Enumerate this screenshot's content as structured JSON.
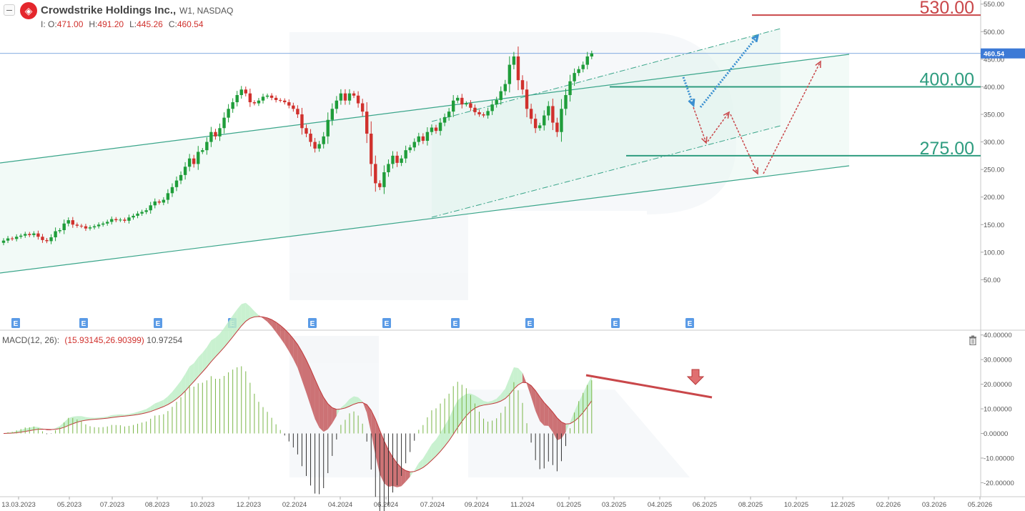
{
  "header": {
    "logo_icon": "crowdstrike-falcon-icon",
    "symbol_name": "Crowdstrike Holdings Inc.,",
    "timeframe_exchange": "W1,  NASDAQ",
    "ohlc": [
      {
        "key": "O:",
        "value": "471.00"
      },
      {
        "key": "H:",
        "value": "491.20"
      },
      {
        "key": "L:",
        "value": "445.26"
      },
      {
        "key": "C:",
        "value": "460.54"
      }
    ],
    "prefix": "I:"
  },
  "colors": {
    "up": "#1f9d3a",
    "down": "#d0312d",
    "channel": "#3aa58a",
    "level_green": "#2e9c7f",
    "level_red": "#c9474a",
    "price_line": "#5b8fd6",
    "macd_line": "#c0393b",
    "signal_fill_up": "#bfeec8",
    "signal_fill_down": "#c45a5d",
    "histogram_up": "#7ab648",
    "histogram_down": "#333333",
    "earnings": "#5b9be6"
  },
  "chart_data": [
    {
      "type": "candlestick",
      "name": "price",
      "ylim": [
        0,
        560
      ],
      "y_ticks": [
        50,
        100,
        150,
        200,
        250,
        300,
        350,
        400,
        450,
        500,
        550
      ],
      "y_tick_labels": [
        "50.00",
        "100.00",
        "150.00",
        "200.00",
        "250.00",
        "300.00",
        "350.00",
        "400.00",
        "450.00",
        "500.00",
        "550.00"
      ],
      "x_tick_labels": [
        "13.03.2023",
        "05.2023",
        "07.2023",
        "08.2023",
        "10.2023",
        "12.2023",
        "02.2024",
        "04.2024",
        "06.2024",
        "07.2024",
        "09.2024",
        "11.2024",
        "01.2025",
        "03.2025",
        "04.2025",
        "06.2025",
        "08.2025",
        "10.2025",
        "12.2025",
        "02.2026",
        "03.2026",
        "05.2026"
      ],
      "last_price": 460.54,
      "last_price_label": "460.54",
      "levels": [
        {
          "value": 530,
          "label": "530.00",
          "color": "red"
        },
        {
          "value": 400,
          "label": "400.00",
          "color": "green"
        },
        {
          "value": 275,
          "label": "275.00",
          "color": "green"
        }
      ],
      "earnings_marker": "E",
      "earnings_count": 10,
      "candles_start": "2023-03-13",
      "candles_interval": "week",
      "closes": [
        121,
        125,
        124,
        128,
        130,
        133,
        131,
        134,
        128,
        122,
        120,
        127,
        138,
        140,
        152,
        158,
        150,
        148,
        147,
        143,
        145,
        147,
        150,
        152,
        155,
        160,
        158,
        159,
        157,
        163,
        166,
        170,
        173,
        176,
        185,
        192,
        190,
        195,
        207,
        218,
        230,
        240,
        255,
        270,
        260,
        282,
        285,
        300,
        318,
        310,
        325,
        344,
        360,
        372,
        385,
        395,
        388,
        372,
        370,
        375,
        382,
        384,
        380,
        376,
        375,
        372,
        366,
        360,
        350,
        325,
        315,
        300,
        288,
        296,
        310,
        340,
        360,
        375,
        388,
        375,
        388,
        384,
        370,
        355,
        315,
        260,
        225,
        218,
        245,
        260,
        275,
        262,
        270,
        285,
        290,
        300,
        310,
        302,
        318,
        326,
        320,
        335,
        345,
        355,
        375,
        380,
        368,
        370,
        362,
        354,
        350,
        348,
        356,
        368,
        376,
        392,
        405,
        440,
        455,
        412,
        395,
        360,
        342,
        325,
        330,
        348,
        365,
        335,
        318,
        360,
        385,
        410,
        425,
        432,
        440,
        455,
        460.54
      ],
      "macd": {
        "label": "MACD(12, 26):",
        "values_label": "(15.93145,26.90399)",
        "hist_label": "10.97254",
        "ylim": [
          -22,
          41
        ],
        "y_ticks": [
          -20,
          -10,
          0,
          10,
          20,
          30,
          40
        ],
        "y_tick_labels": [
          "-20.00000",
          "-10.00000",
          "0.00000",
          "10.00000",
          "20.00000",
          "30.00000",
          "40.00000"
        ],
        "current": {
          "macd": 15.93145,
          "signal": 26.90399,
          "histogram": 10.97254
        }
      }
    }
  ]
}
